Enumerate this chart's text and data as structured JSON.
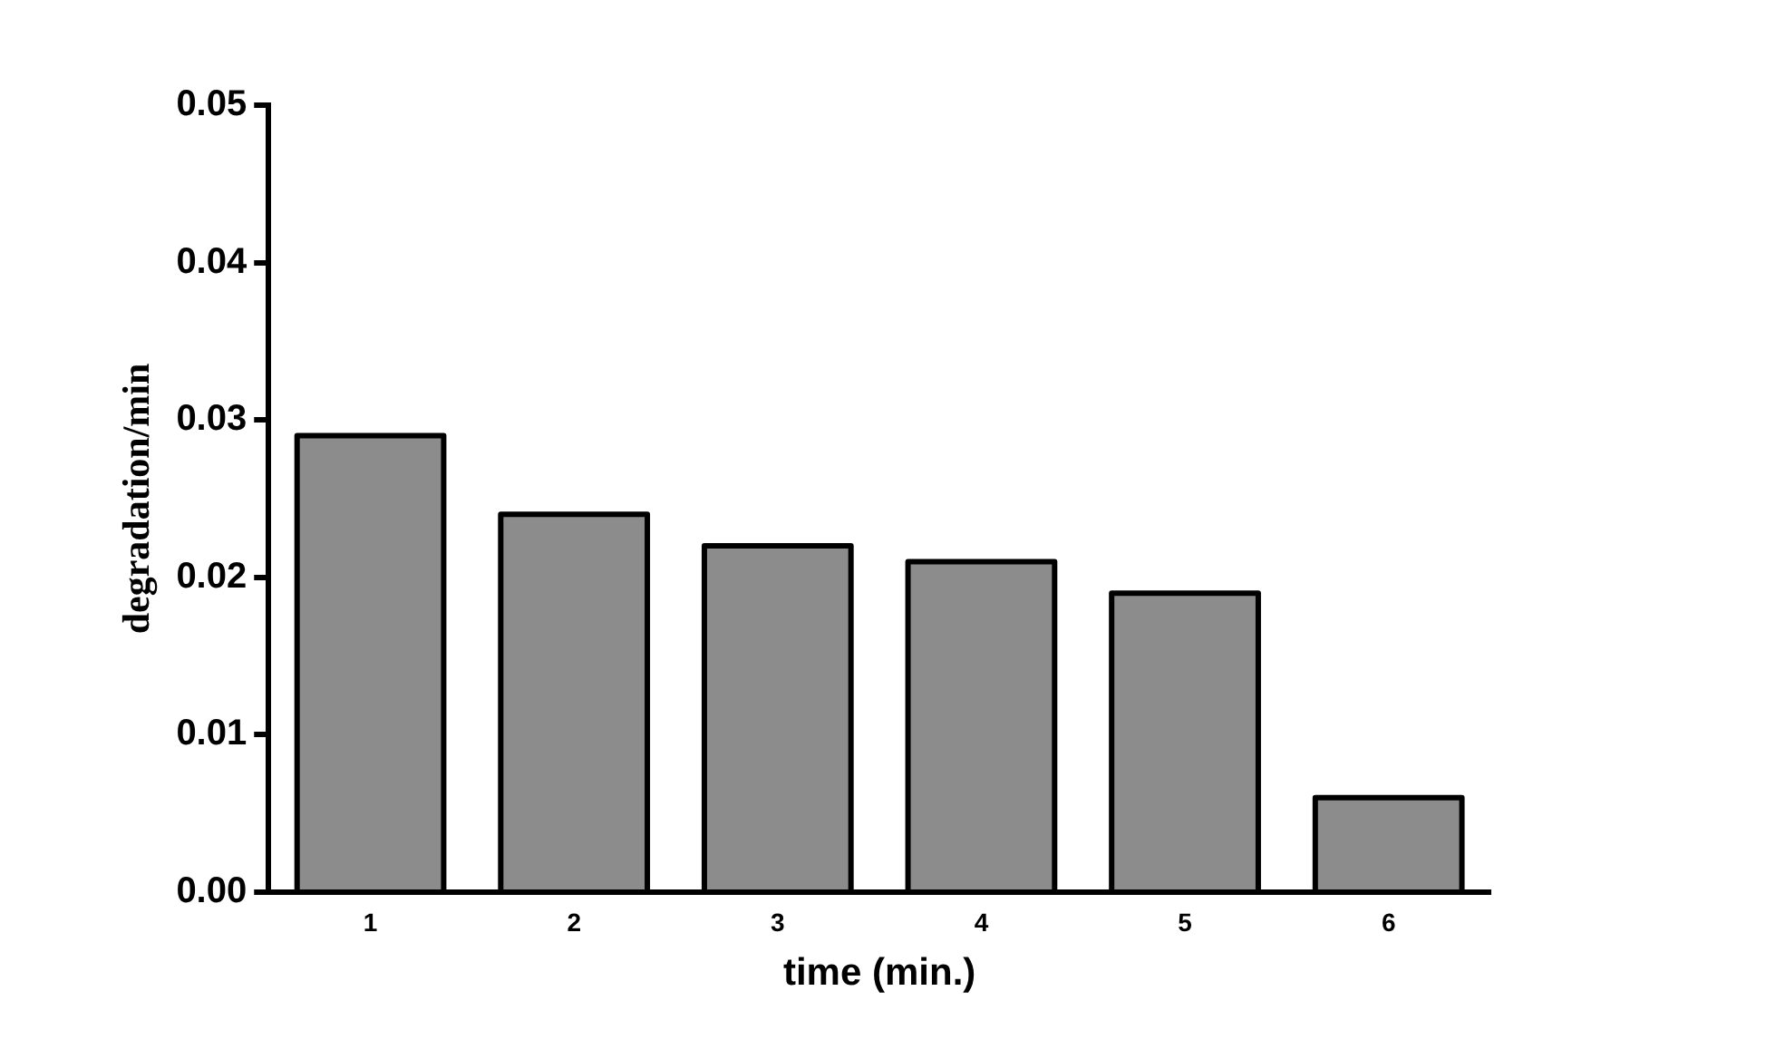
{
  "chart_data": {
    "type": "bar",
    "xlabel": "time (min.)",
    "ylabel": "degradation/min",
    "categories": [
      "1",
      "2",
      "3",
      "4",
      "5",
      "6"
    ],
    "values": [
      0.029,
      0.024,
      0.022,
      0.021,
      0.019,
      0.006
    ],
    "color": "#8c8c8c",
    "ylim": [
      0,
      0.05
    ],
    "yticks": [
      {
        "value": 0,
        "label": "0.00"
      },
      {
        "value": 0.01,
        "label": "0.01"
      },
      {
        "value": 0.02,
        "label": "0.02"
      },
      {
        "value": 0.03,
        "label": "0.03"
      },
      {
        "value": 0.04,
        "label": "0.04"
      },
      {
        "value": 0.05,
        "label": "0.05"
      }
    ],
    "grid": false,
    "legend": false
  }
}
